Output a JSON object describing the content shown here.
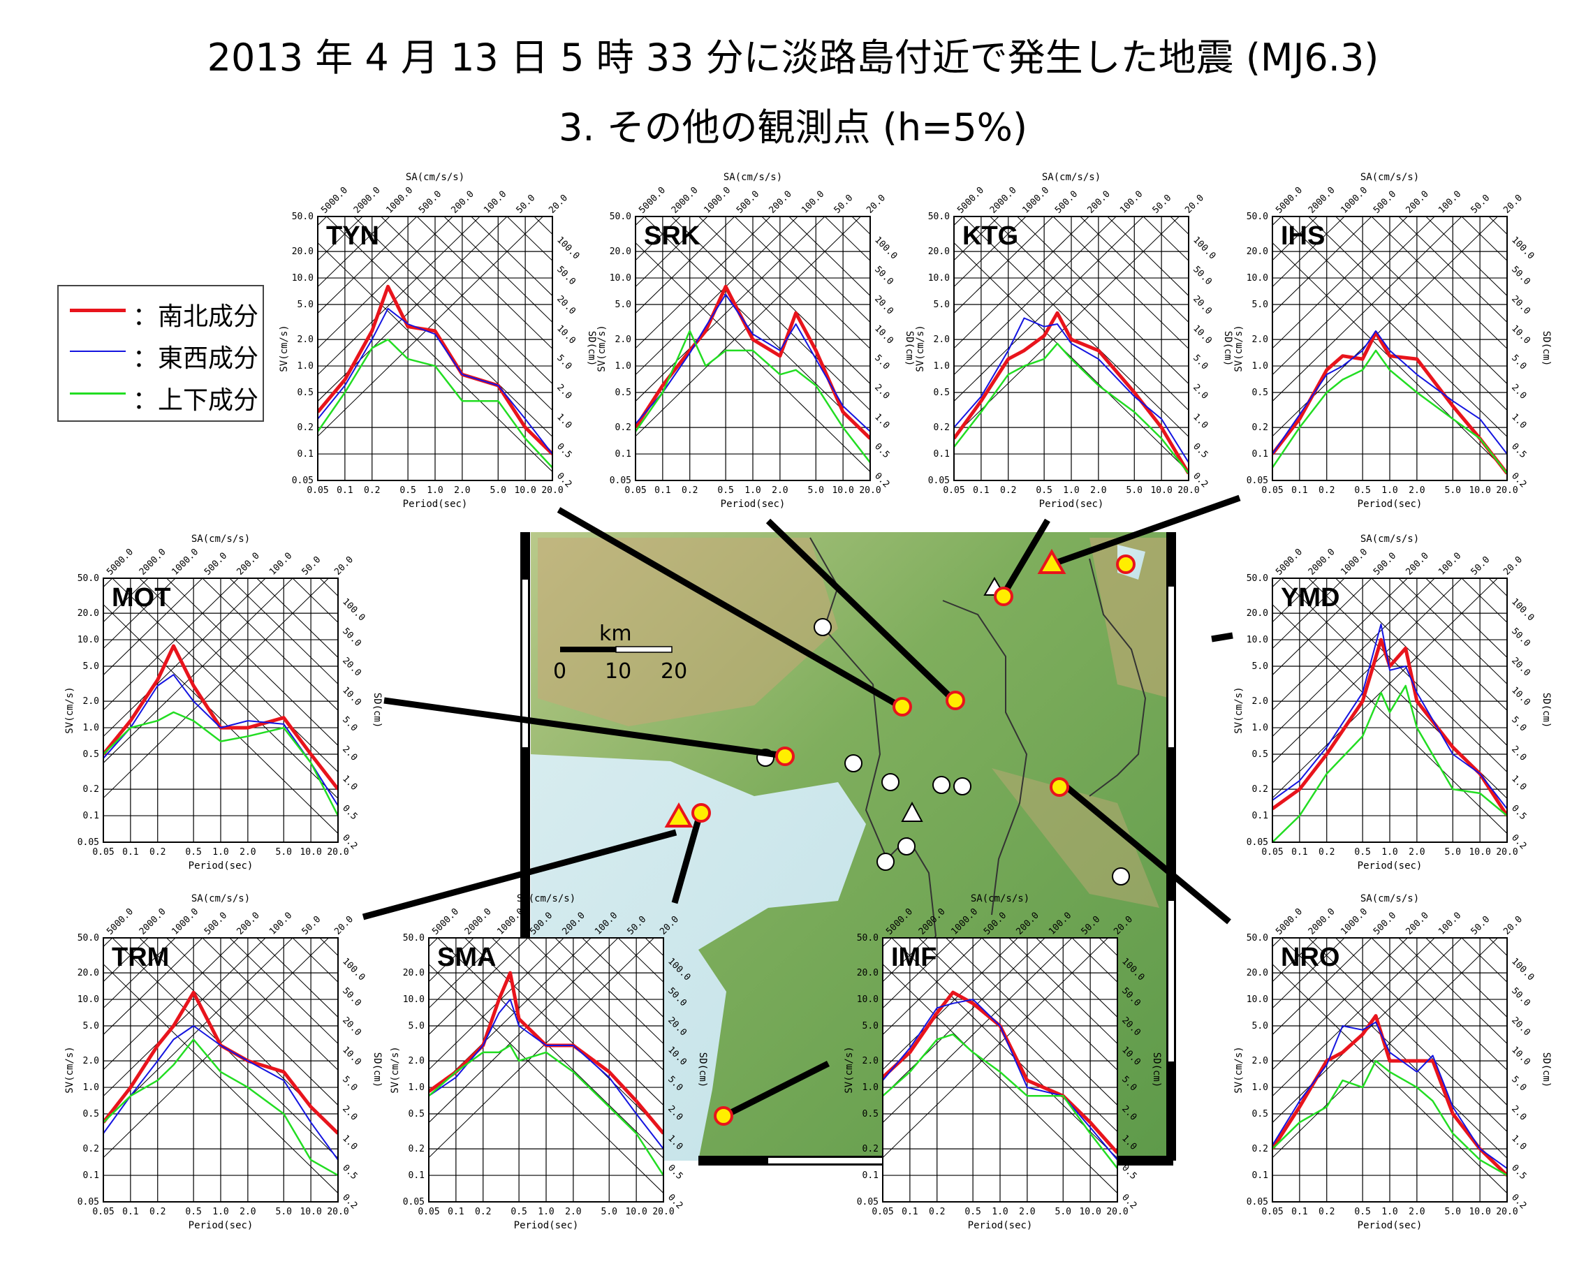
{
  "title": {
    "line1": "2013 年 4 月 13 日 5 時 33 分に淡路島付近で発生した地震 (MJ6.3)",
    "line2": "3.  その他の観測点 (h=5%)"
  },
  "legend": [
    {
      "label": "：南北成分",
      "color": "#e8141c",
      "width": 5
    },
    {
      "label": "：東西成分",
      "color": "#1414e0",
      "width": 2
    },
    {
      "label": "：上下成分",
      "color": "#22dd22",
      "width": 2.5
    }
  ],
  "map": {
    "scale_title": "km",
    "scale_ticks": [
      "0",
      "10",
      "20"
    ]
  },
  "axes": {
    "sv_label": "SV(cm/s)",
    "sd_label": "SD(cm)",
    "sa_label": "SA(cm/s/s)",
    "x_label": "Period(sec)",
    "x_ticks": [
      "0.05",
      "0.1",
      "0.2",
      "0.5",
      "1.0",
      "2.0",
      "5.0",
      "10.0",
      "20.0"
    ],
    "x_tick_values": [
      0.05,
      0.1,
      0.2,
      0.5,
      1.0,
      2.0,
      5.0,
      10.0,
      20.0
    ],
    "y_ticks": [
      "0.05",
      "0.1",
      "0.2",
      "0.5",
      "1.0",
      "2.0",
      "5.0",
      "10.0",
      "20.0",
      "50.0"
    ],
    "y_tick_values": [
      0.05,
      0.1,
      0.2,
      0.5,
      1.0,
      2.0,
      5.0,
      10.0,
      20.0,
      50.0
    ],
    "sa_ticks": [
      "5000.0",
      "2000.0",
      "1000.0",
      "500.0",
      "200.0",
      "100.0",
      "50.0",
      "20.0"
    ],
    "sa_tick_values": [
      5000,
      2000,
      1000,
      500,
      200,
      100,
      50,
      20
    ],
    "sd_ticks": [
      "100.0",
      "50.0",
      "20.0",
      "10.0",
      "5.0",
      "2.0",
      "1.0",
      "0.5",
      "0.2"
    ],
    "sd_tick_values": [
      100,
      50,
      20,
      10,
      5,
      2,
      1,
      0.5,
      0.2
    ],
    "xlim": [
      0.05,
      20.0
    ],
    "ylim": [
      0.05,
      50.0
    ],
    "scale": "log-log tripartite"
  },
  "chart_data": [
    {
      "type": "line",
      "station": "TYN",
      "x": [
        0.05,
        0.1,
        0.2,
        0.3,
        0.5,
        1.0,
        2.0,
        5.0,
        10.0,
        20.0
      ],
      "series": [
        {
          "name": "南北成分",
          "values": [
            0.3,
            0.7,
            2.5,
            8.0,
            2.8,
            2.5,
            0.8,
            0.6,
            0.2,
            0.1
          ]
        },
        {
          "name": "東西成分",
          "values": [
            0.25,
            0.6,
            2.0,
            4.5,
            3.0,
            2.3,
            0.8,
            0.6,
            0.25,
            0.1
          ]
        },
        {
          "name": "上下成分",
          "values": [
            0.18,
            0.5,
            1.6,
            2.0,
            1.2,
            1.0,
            0.4,
            0.4,
            0.15,
            0.07
          ]
        }
      ]
    },
    {
      "type": "line",
      "station": "SRK",
      "x": [
        0.05,
        0.1,
        0.2,
        0.3,
        0.5,
        1.0,
        2.0,
        3.0,
        5.0,
        10.0,
        20.0
      ],
      "series": [
        {
          "name": "南北成分",
          "values": [
            0.2,
            0.6,
            1.5,
            2.5,
            8.0,
            2.0,
            1.3,
            4.0,
            1.5,
            0.3,
            0.15
          ]
        },
        {
          "name": "東西成分",
          "values": [
            0.22,
            0.5,
            1.4,
            2.8,
            6.5,
            2.3,
            1.5,
            3.0,
            1.2,
            0.35,
            0.18
          ]
        },
        {
          "name": "上下成分",
          "values": [
            0.18,
            0.5,
            2.5,
            1.0,
            1.5,
            1.5,
            0.8,
            0.9,
            0.6,
            0.2,
            0.08
          ]
        }
      ]
    },
    {
      "type": "line",
      "station": "KTG",
      "x": [
        0.05,
        0.1,
        0.2,
        0.3,
        0.5,
        0.7,
        1.0,
        2.0,
        5.0,
        10.0,
        20.0
      ],
      "series": [
        {
          "name": "南北成分",
          "values": [
            0.15,
            0.4,
            1.2,
            1.5,
            2.2,
            4.0,
            2.0,
            1.5,
            0.5,
            0.2,
            0.06
          ]
        },
        {
          "name": "東西成分",
          "values": [
            0.2,
            0.45,
            1.5,
            3.5,
            2.8,
            3.0,
            1.8,
            1.2,
            0.45,
            0.25,
            0.08
          ]
        },
        {
          "name": "上下成分",
          "values": [
            0.12,
            0.3,
            0.8,
            1.0,
            1.2,
            1.8,
            1.2,
            0.6,
            0.3,
            0.15,
            0.06
          ]
        }
      ]
    },
    {
      "type": "line",
      "station": "IHS",
      "x": [
        0.05,
        0.1,
        0.2,
        0.3,
        0.5,
        0.7,
        1.0,
        2.0,
        5.0,
        10.0,
        20.0
      ],
      "series": [
        {
          "name": "南北成分",
          "values": [
            0.1,
            0.25,
            0.9,
            1.3,
            1.2,
            2.4,
            1.3,
            1.2,
            0.35,
            0.15,
            0.06
          ]
        },
        {
          "name": "東西成分",
          "values": [
            0.1,
            0.28,
            0.8,
            1.0,
            1.5,
            2.5,
            1.5,
            0.8,
            0.4,
            0.25,
            0.1
          ]
        },
        {
          "name": "上下成分",
          "values": [
            0.07,
            0.2,
            0.5,
            0.7,
            0.9,
            1.5,
            0.9,
            0.5,
            0.25,
            0.15,
            0.06
          ]
        }
      ]
    },
    {
      "type": "line",
      "station": "MOT",
      "x": [
        0.05,
        0.1,
        0.2,
        0.3,
        0.5,
        1.0,
        2.0,
        5.0,
        10.0,
        20.0
      ],
      "series": [
        {
          "name": "南北成分",
          "values": [
            0.5,
            1.2,
            3.5,
            8.5,
            3.0,
            1.0,
            1.0,
            1.3,
            0.5,
            0.2
          ]
        },
        {
          "name": "東西成分",
          "values": [
            0.45,
            1.0,
            3.0,
            4.0,
            2.0,
            1.0,
            1.2,
            1.1,
            0.4,
            0.13
          ]
        },
        {
          "name": "上下成分",
          "values": [
            0.5,
            1.0,
            1.2,
            1.5,
            1.2,
            0.7,
            0.8,
            1.0,
            0.4,
            0.1
          ]
        }
      ]
    },
    {
      "type": "line",
      "station": "YMD",
      "x": [
        0.05,
        0.1,
        0.2,
        0.5,
        0.8,
        1.0,
        1.5,
        2.0,
        5.0,
        10.0,
        20.0
      ],
      "series": [
        {
          "name": "南北成分",
          "values": [
            0.12,
            0.2,
            0.5,
            2.0,
            10.0,
            5.0,
            8.0,
            2.0,
            0.6,
            0.3,
            0.1
          ]
        },
        {
          "name": "東西成分",
          "values": [
            0.15,
            0.25,
            0.6,
            2.5,
            15.0,
            4.5,
            5.0,
            2.5,
            0.5,
            0.3,
            0.12
          ]
        },
        {
          "name": "上下成分",
          "values": [
            0.05,
            0.1,
            0.3,
            0.8,
            2.5,
            1.5,
            3.0,
            1.0,
            0.2,
            0.18,
            0.1
          ]
        }
      ]
    },
    {
      "type": "line",
      "station": "TRM",
      "x": [
        0.05,
        0.1,
        0.2,
        0.3,
        0.5,
        1.0,
        2.0,
        5.0,
        10.0,
        20.0
      ],
      "series": [
        {
          "name": "南北成分",
          "values": [
            0.4,
            1.0,
            3.0,
            5.0,
            12.0,
            3.0,
            2.0,
            1.5,
            0.6,
            0.3
          ]
        },
        {
          "name": "東西成分",
          "values": [
            0.3,
            0.8,
            2.0,
            3.5,
            5.0,
            3.0,
            2.0,
            1.2,
            0.4,
            0.15
          ]
        },
        {
          "name": "上下成分",
          "values": [
            0.4,
            0.8,
            1.2,
            1.8,
            3.5,
            1.5,
            1.0,
            0.5,
            0.15,
            0.1
          ]
        }
      ]
    },
    {
      "type": "line",
      "station": "SMA",
      "x": [
        0.05,
        0.1,
        0.2,
        0.3,
        0.4,
        0.5,
        1.0,
        2.0,
        5.0,
        10.0,
        20.0
      ],
      "series": [
        {
          "name": "南北成分",
          "values": [
            0.9,
            1.5,
            3.0,
            10.0,
            20.0,
            6.0,
            3.0,
            3.0,
            1.5,
            0.7,
            0.3
          ]
        },
        {
          "name": "東西成分",
          "values": [
            0.8,
            1.3,
            3.0,
            7.0,
            10.0,
            5.0,
            3.0,
            3.0,
            1.3,
            0.5,
            0.2
          ]
        },
        {
          "name": "上下成分",
          "values": [
            0.8,
            1.5,
            2.5,
            2.5,
            3.0,
            2.0,
            2.5,
            1.5,
            0.6,
            0.3,
            0.1
          ]
        }
      ]
    },
    {
      "type": "line",
      "station": "IMF",
      "x": [
        0.05,
        0.1,
        0.2,
        0.3,
        0.5,
        1.0,
        2.0,
        5.0,
        10.0,
        20.0
      ],
      "series": [
        {
          "name": "南北成分",
          "values": [
            1.3,
            2.5,
            7.0,
            12.0,
            9.0,
            5.0,
            1.2,
            0.8,
            0.4,
            0.18
          ]
        },
        {
          "name": "東西成分",
          "values": [
            1.2,
            2.8,
            8.0,
            9.0,
            10.0,
            5.0,
            1.0,
            0.8,
            0.35,
            0.15
          ]
        },
        {
          "name": "上下成分",
          "values": [
            0.8,
            1.5,
            3.5,
            4.0,
            2.5,
            1.5,
            0.8,
            0.8,
            0.3,
            0.12
          ]
        }
      ]
    },
    {
      "type": "line",
      "station": "NRO",
      "x": [
        0.05,
        0.1,
        0.2,
        0.3,
        0.5,
        0.7,
        1.0,
        2.0,
        3.0,
        5.0,
        10.0,
        20.0
      ],
      "series": [
        {
          "name": "南北成分",
          "values": [
            0.2,
            0.6,
            2.0,
            2.5,
            4.0,
            6.5,
            2.0,
            2.0,
            2.0,
            0.5,
            0.2,
            0.1
          ]
        },
        {
          "name": "東西成分",
          "values": [
            0.22,
            0.7,
            1.8,
            5.0,
            4.5,
            5.5,
            2.5,
            1.5,
            2.3,
            0.6,
            0.2,
            0.12
          ]
        },
        {
          "name": "上下成分",
          "values": [
            0.2,
            0.4,
            0.6,
            1.2,
            1.0,
            2.0,
            1.5,
            1.0,
            0.7,
            0.3,
            0.15,
            0.1
          ]
        }
      ]
    }
  ]
}
